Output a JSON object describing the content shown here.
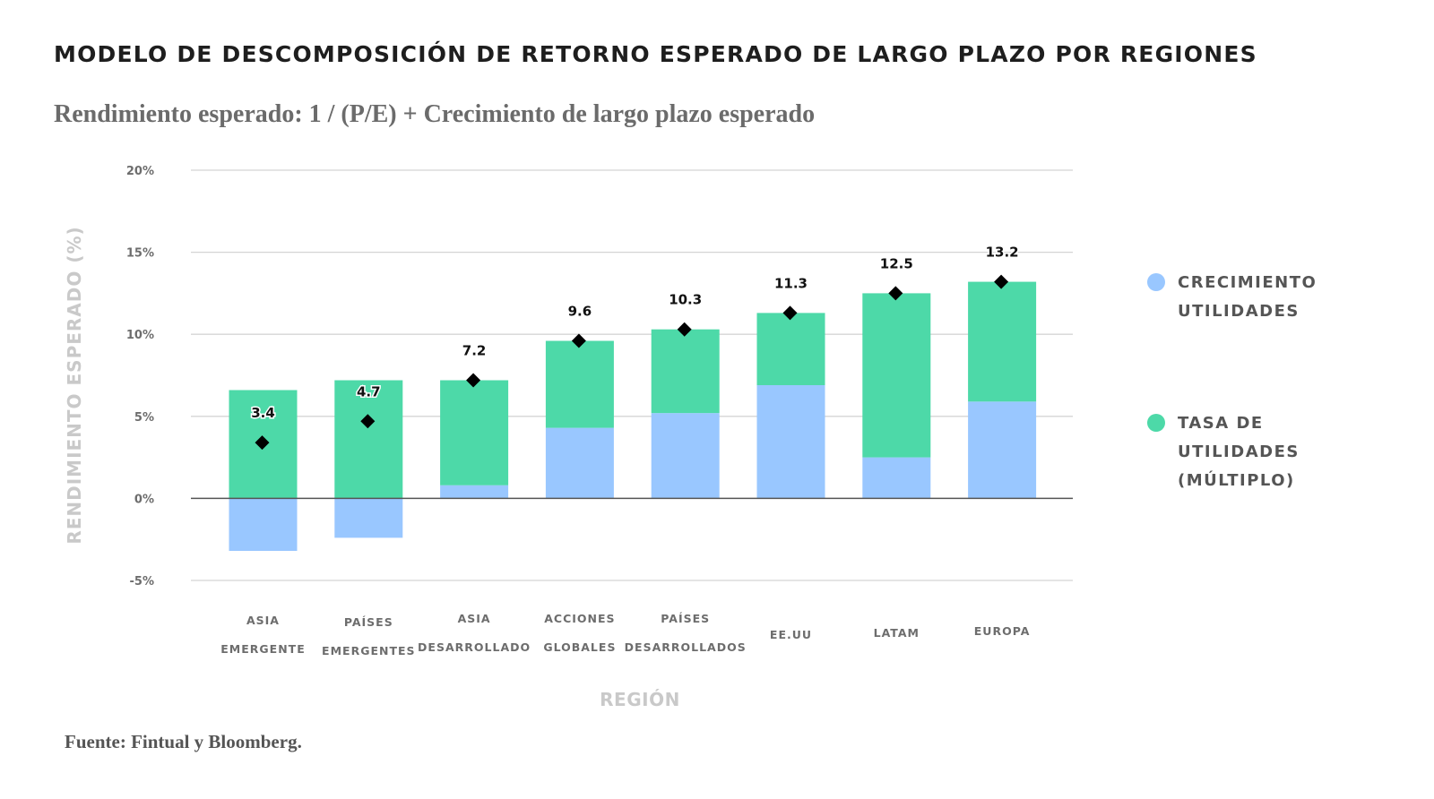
{
  "header": {
    "title": "MODELO DE DESCOMPOSICIÓN DE RETORNO ESPERADO DE LARGO PLAZO POR REGIONES",
    "subtitle": "Rendimiento esperado: 1 / (P/E) + Crecimiento de largo plazo esperado"
  },
  "footer": {
    "source": "Fuente: Fintual y Bloomberg."
  },
  "colors": {
    "growth": "#99c7ff",
    "earnings_yield": "#4dd9a8",
    "marker": "#000000",
    "grid": "#d4d4d4",
    "zero_line": "#555555"
  },
  "chart_data": {
    "type": "bar",
    "stacked": true,
    "categories": [
      [
        "ASIA",
        "EMERGENTE"
      ],
      [
        "PAÍSES",
        "EMERGENTES"
      ],
      [
        "ASIA",
        "DESARROLLADO"
      ],
      [
        "ACCIONES",
        "GLOBALES"
      ],
      [
        "PAÍSES",
        "DESARROLLADOS"
      ],
      [
        "EE.UU"
      ],
      [
        "LATAM"
      ],
      [
        "EUROPA"
      ]
    ],
    "series": [
      {
        "name_lines": [
          "CRECIMIENTO",
          "UTILIDADES"
        ],
        "color": "#99c7ff",
        "values": [
          -3.2,
          -2.4,
          0.8,
          4.3,
          5.2,
          6.9,
          2.5,
          5.9
        ]
      },
      {
        "name_lines": [
          "TASA DE",
          "UTILIDADES",
          "(MÚLTIPLO)"
        ],
        "color": "#4dd9a8",
        "values": [
          6.6,
          7.2,
          6.4,
          5.3,
          5.1,
          4.4,
          10.0,
          7.3
        ]
      }
    ],
    "totals": {
      "marker": "diamond",
      "values": [
        3.4,
        4.7,
        7.2,
        9.6,
        10.3,
        11.3,
        12.5,
        13.2
      ],
      "labels": [
        "3.4",
        "4.7",
        "7.2",
        "9.6",
        "10.3",
        "11.3",
        "12.5",
        "13.2"
      ]
    },
    "ylabel": "RENDIMIENTO ESPERADO (%)",
    "xlabel": "REGIÓN",
    "ylim": [
      -5,
      20
    ],
    "yticks": [
      -5,
      0,
      5,
      10,
      15,
      20
    ],
    "ytick_labels": [
      "-5%",
      "0%",
      "5%",
      "10%",
      "15%",
      "20%"
    ],
    "grid": true,
    "legend_position": "right"
  }
}
